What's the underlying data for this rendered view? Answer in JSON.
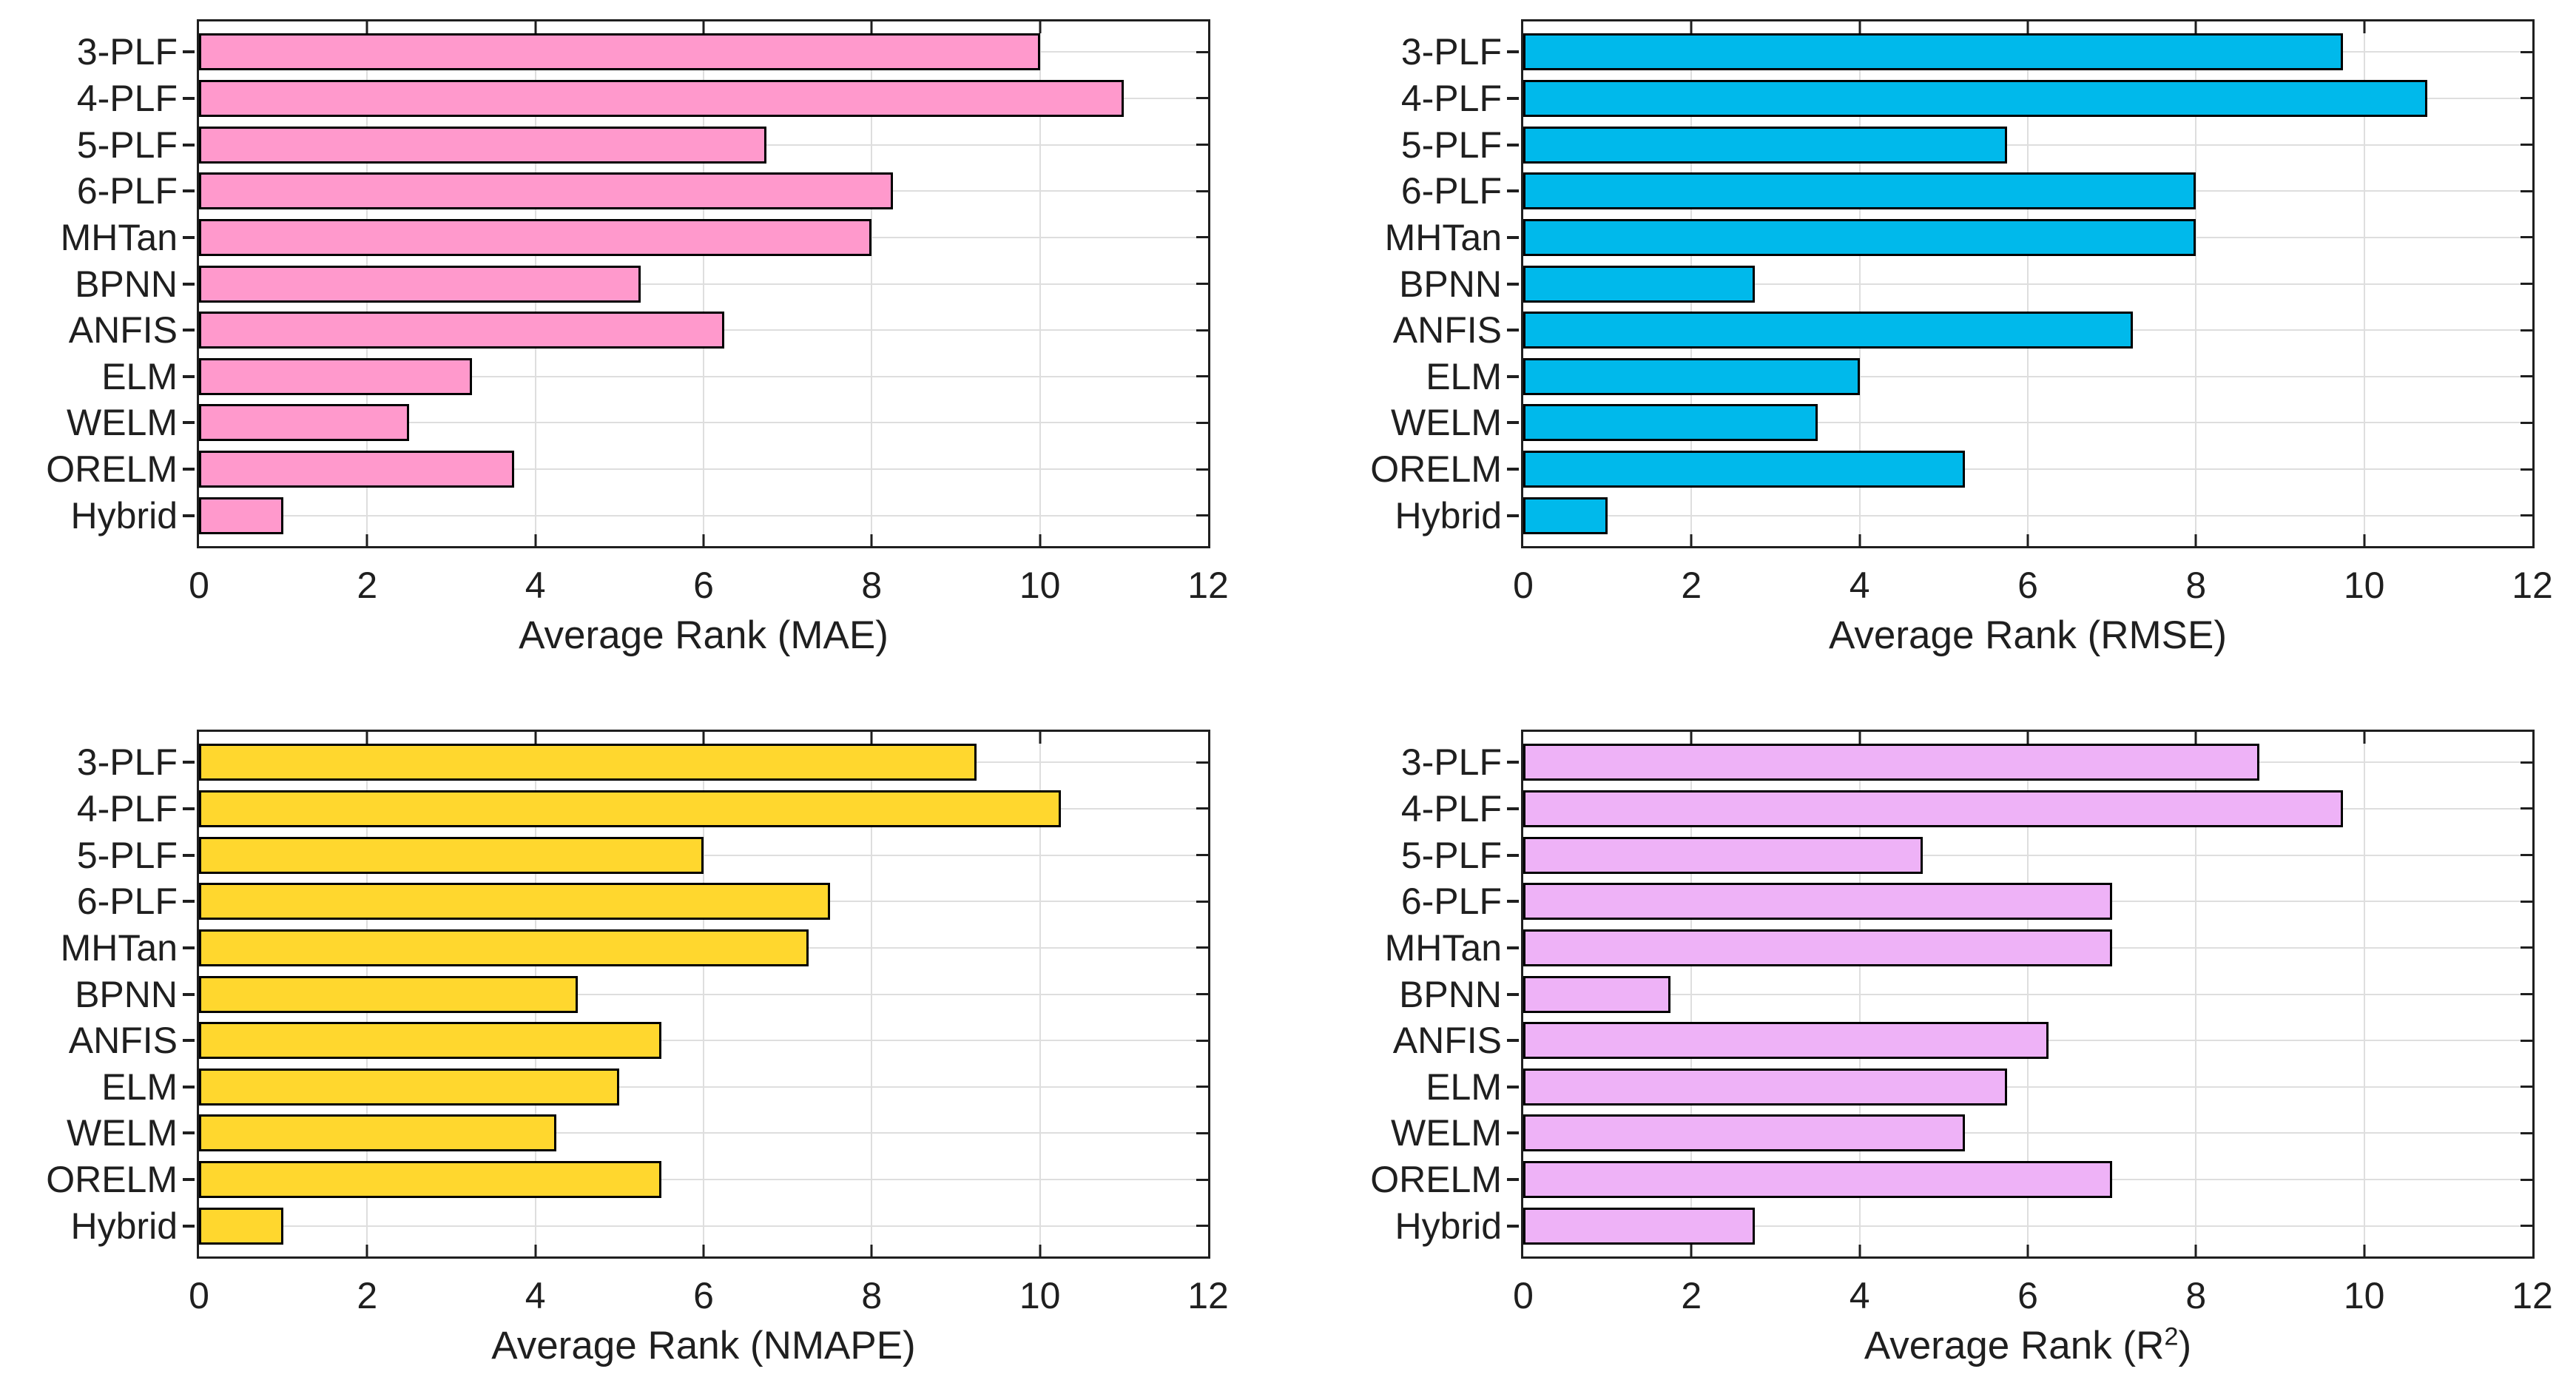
{
  "figure": {
    "background": "#FFFFFF",
    "text_color": "#1F1F1F",
    "grid_color": "#DEDEDE",
    "box_color": "#1F1F1F",
    "bar_border_color": "#000000",
    "layout": "2x2 grid of horizontal bar charts"
  },
  "chart_data": [
    {
      "id": "mae",
      "type": "bar",
      "orientation": "horizontal",
      "title": "",
      "categories": [
        "3-PLF",
        "4-PLF",
        "5-PLF",
        "6-PLF",
        "MHTan",
        "BPNN",
        "ANFIS",
        "ELM",
        "WELM",
        "ORELM",
        "Hybrid"
      ],
      "values": [
        10,
        11,
        6.75,
        8.25,
        8,
        5.25,
        6.25,
        3.25,
        2.5,
        3.75,
        1
      ],
      "xlabel": "Average Rank (MAE)",
      "xlabel_parts": [
        {
          "t": "Average Rank (MAE)"
        }
      ],
      "xlim": [
        0,
        12
      ],
      "xticks": [
        0,
        2,
        4,
        6,
        8,
        10,
        12
      ],
      "bar_color": "#FF99CC",
      "grid": true,
      "legend": "none"
    },
    {
      "id": "rmse",
      "type": "bar",
      "orientation": "horizontal",
      "title": "",
      "categories": [
        "3-PLF",
        "4-PLF",
        "5-PLF",
        "6-PLF",
        "MHTan",
        "BPNN",
        "ANFIS",
        "ELM",
        "WELM",
        "ORELM",
        "Hybrid"
      ],
      "values": [
        9.75,
        10.75,
        5.75,
        8,
        8,
        2.75,
        7.25,
        4,
        3.5,
        5.25,
        1
      ],
      "xlabel": "Average Rank (RMSE)",
      "xlabel_parts": [
        {
          "t": "Average Rank (RMSE)"
        }
      ],
      "xlim": [
        0,
        12
      ],
      "xticks": [
        0,
        2,
        4,
        6,
        8,
        10,
        12
      ],
      "bar_color": "#00B9EB",
      "grid": true,
      "legend": "none"
    },
    {
      "id": "nmape",
      "type": "bar",
      "orientation": "horizontal",
      "title": "",
      "categories": [
        "3-PLF",
        "4-PLF",
        "5-PLF",
        "6-PLF",
        "MHTan",
        "BPNN",
        "ANFIS",
        "ELM",
        "WELM",
        "ORELM",
        "Hybrid"
      ],
      "values": [
        9.25,
        10.25,
        6,
        7.5,
        7.25,
        4.5,
        5.5,
        5,
        4.25,
        5.5,
        1
      ],
      "xlabel": "Average Rank (NMAPE)",
      "xlabel_parts": [
        {
          "t": "Average Rank (NMAPE)"
        }
      ],
      "xlim": [
        0,
        12
      ],
      "xticks": [
        0,
        2,
        4,
        6,
        8,
        10,
        12
      ],
      "bar_color": "#FFD72E",
      "grid": true,
      "legend": "none"
    },
    {
      "id": "r2",
      "type": "bar",
      "orientation": "horizontal",
      "title": "",
      "categories": [
        "3-PLF",
        "4-PLF",
        "5-PLF",
        "6-PLF",
        "MHTan",
        "BPNN",
        "ANFIS",
        "ELM",
        "WELM",
        "ORELM",
        "Hybrid"
      ],
      "values": [
        8.75,
        9.75,
        4.75,
        7,
        7,
        1.75,
        6.25,
        5.75,
        5.25,
        7,
        2.75
      ],
      "xlabel": "Average Rank (R2)",
      "xlabel_parts": [
        {
          "t": "Average Rank (R"
        },
        {
          "t": "2",
          "sup": true
        },
        {
          "t": ")"
        }
      ],
      "xlim": [
        0,
        12
      ],
      "xticks": [
        0,
        2,
        4,
        6,
        8,
        10,
        12
      ],
      "bar_color": "#EEB2F7",
      "grid": true,
      "legend": "none"
    }
  ]
}
